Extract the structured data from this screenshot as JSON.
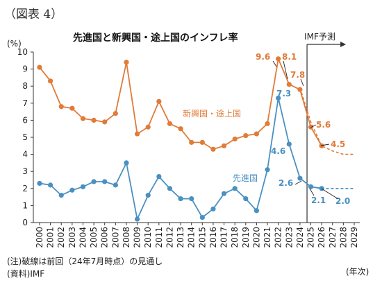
{
  "figure_label": "（図表 4）",
  "note": "(注)破線は前回（24年7月時点）の見通し",
  "source": "(資料)IMF",
  "chart_data": {
    "type": "line",
    "title": "先進国と新興国・途上国のインフレ率",
    "ylabel": "(%)",
    "xlabel": "(年次)",
    "ylim": [
      0,
      10
    ],
    "yticks": [
      0,
      1,
      2,
      3,
      4,
      5,
      6,
      7,
      8,
      9,
      10
    ],
    "grid": false,
    "forecast_label": "IMF予測",
    "forecast_start": "2025",
    "categories": [
      "2000",
      "2001",
      "2002",
      "2003",
      "2004",
      "2005",
      "2006",
      "2007",
      "2008",
      "2009",
      "2010",
      "2011",
      "2012",
      "2013",
      "2014",
      "2015",
      "2016",
      "2017",
      "2018",
      "2019",
      "2020",
      "2021",
      "2022",
      "2023",
      "2024",
      "2025",
      "2026",
      "2027",
      "2028",
      "2029"
    ],
    "series": [
      {
        "name": "新興国・途上国",
        "color": "#e07b39",
        "values": [
          9.1,
          8.3,
          6.8,
          6.7,
          6.1,
          6.0,
          5.9,
          6.4,
          9.4,
          5.2,
          5.6,
          7.1,
          5.8,
          5.5,
          4.7,
          4.7,
          4.3,
          4.5,
          4.9,
          5.1,
          5.2,
          5.8,
          9.6,
          8.1,
          7.8,
          5.6,
          4.5,
          null,
          null,
          null
        ]
      },
      {
        "name": "先進国",
        "color": "#4a90c2",
        "values": [
          2.3,
          2.2,
          1.6,
          1.9,
          2.1,
          2.4,
          2.4,
          2.2,
          3.5,
          0.2,
          1.6,
          2.7,
          2.0,
          1.4,
          1.4,
          0.3,
          0.8,
          1.7,
          2.0,
          1.4,
          0.7,
          3.1,
          7.3,
          4.6,
          2.6,
          2.1,
          2.0,
          null,
          null,
          null
        ]
      },
      {
        "name": "新興国・途上国（前回見通し）",
        "color": "#e07b39",
        "dashed": true,
        "values": [
          null,
          null,
          null,
          null,
          null,
          null,
          null,
          null,
          null,
          null,
          null,
          null,
          null,
          null,
          null,
          null,
          null,
          null,
          null,
          null,
          null,
          null,
          null,
          null,
          7.9,
          5.9,
          4.5,
          4.2,
          4.0,
          4.0
        ]
      },
      {
        "name": "先進国（前回見通し）",
        "color": "#4a90c2",
        "dashed": true,
        "values": [
          null,
          null,
          null,
          null,
          null,
          null,
          null,
          null,
          null,
          null,
          null,
          null,
          null,
          null,
          null,
          null,
          null,
          null,
          null,
          null,
          null,
          null,
          null,
          null,
          2.6,
          2.1,
          2.0,
          2.0,
          2.0,
          2.0
        ]
      }
    ],
    "annotations": [
      "9.6",
      "8.1",
      "7.8",
      "5.6",
      "4.5",
      "7.3",
      "4.6",
      "2.6",
      "2.1",
      "2.0"
    ]
  }
}
